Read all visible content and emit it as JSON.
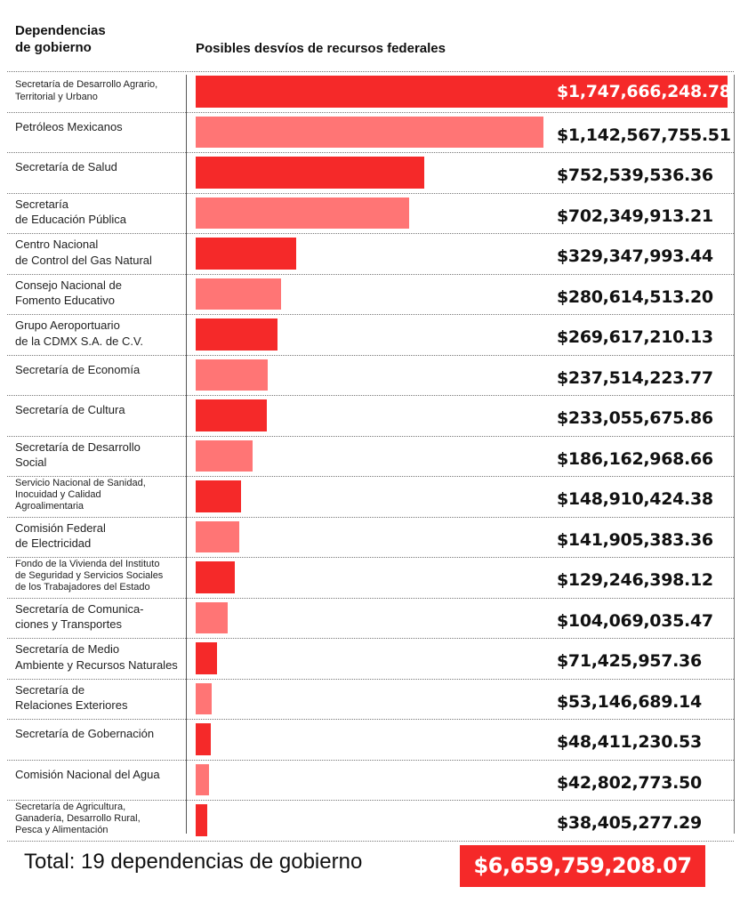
{
  "header": {
    "left_title_line1": "Dependencias",
    "left_title_line2": "de gobierno",
    "right_title": "Posibles desvíos de recursos federales"
  },
  "colors": {
    "dark_red": "#f52929",
    "light_red": "#ff7575"
  },
  "chart_data": {
    "type": "bar",
    "orientation": "horizontal",
    "title": "Posibles desvíos de recursos federales",
    "xlabel": "",
    "ylabel": "Dependencias de gobierno",
    "grid": false,
    "categories": [
      [
        "Secretaría de Desarrollo Agrario,",
        "Territorial y Urbano"
      ],
      [
        "Petróleos Mexicanos"
      ],
      [
        "Secretaría de Salud"
      ],
      [
        "Secretaría",
        "de Educación Pública"
      ],
      [
        "Centro Nacional",
        "de Control del Gas Natural"
      ],
      [
        "Consejo Nacional de",
        "Fomento Educativo"
      ],
      [
        "Grupo Aeroportuario",
        "de la CDMX S.A. de C.V."
      ],
      [
        "Secretaría de Economía"
      ],
      [
        "Secretaría de Cultura"
      ],
      [
        "Secretaría de Desarrollo",
        "Social"
      ],
      [
        "Servicio Nacional de Sanidad,",
        "Inocuidad y Calidad",
        "Agroalimentaria"
      ],
      [
        "Comisión Federal",
        "de Electricidad"
      ],
      [
        "Fondo de la Vivienda del Instituto",
        "de Seguridad y Servicios Sociales",
        "de los Trabajadores del Estado"
      ],
      [
        "Secretaría de Comunica-",
        "ciones y Transportes"
      ],
      [
        "Secretaría de Medio",
        "Ambiente y Recursos Naturales"
      ],
      [
        "Secretaría de",
        "Relaciones Exteriores"
      ],
      [
        "Secretaría de Gobernación"
      ],
      [
        "Comisión Nacional del Agua"
      ],
      [
        "Secretaría de Agricultura,",
        "Ganadería, Desarrollo Rural,",
        "Pesca y Alimentación"
      ]
    ],
    "values": [
      1747666248.78,
      1142567755.51,
      752539536.36,
      702349913.21,
      329347993.44,
      280614513.2,
      269617210.13,
      237514223.77,
      233055675.86,
      186162968.66,
      148910424.38,
      141905383.36,
      129246398.12,
      104069035.47,
      71425957.36,
      53146689.14,
      48411230.53,
      42802773.5,
      38405277.29
    ],
    "value_labels": [
      "$1,747,666,248.78",
      "$1,142,567,755.51",
      "$752,539,536.36",
      "$702,349,913.21",
      "$329,347,993.44",
      "$280,614,513.20",
      "$269,617,210.13",
      "$237,514,223.77",
      "$233,055,675.86",
      "$186,162,968.66",
      "$148,910,424.38",
      "$141,905,383.36",
      "$129,246,398.12",
      "$104,069,035.47",
      "$71,425,957.36",
      "$53,146,689.14",
      "$48,411,230.53",
      "$42,802,773.50",
      "$38,405,277.29"
    ],
    "xlim": [
      0,
      1747666248.78
    ]
  },
  "total": {
    "label": "Total: 19 dependencias de gobierno",
    "value": "$6,659,759,208.07"
  }
}
